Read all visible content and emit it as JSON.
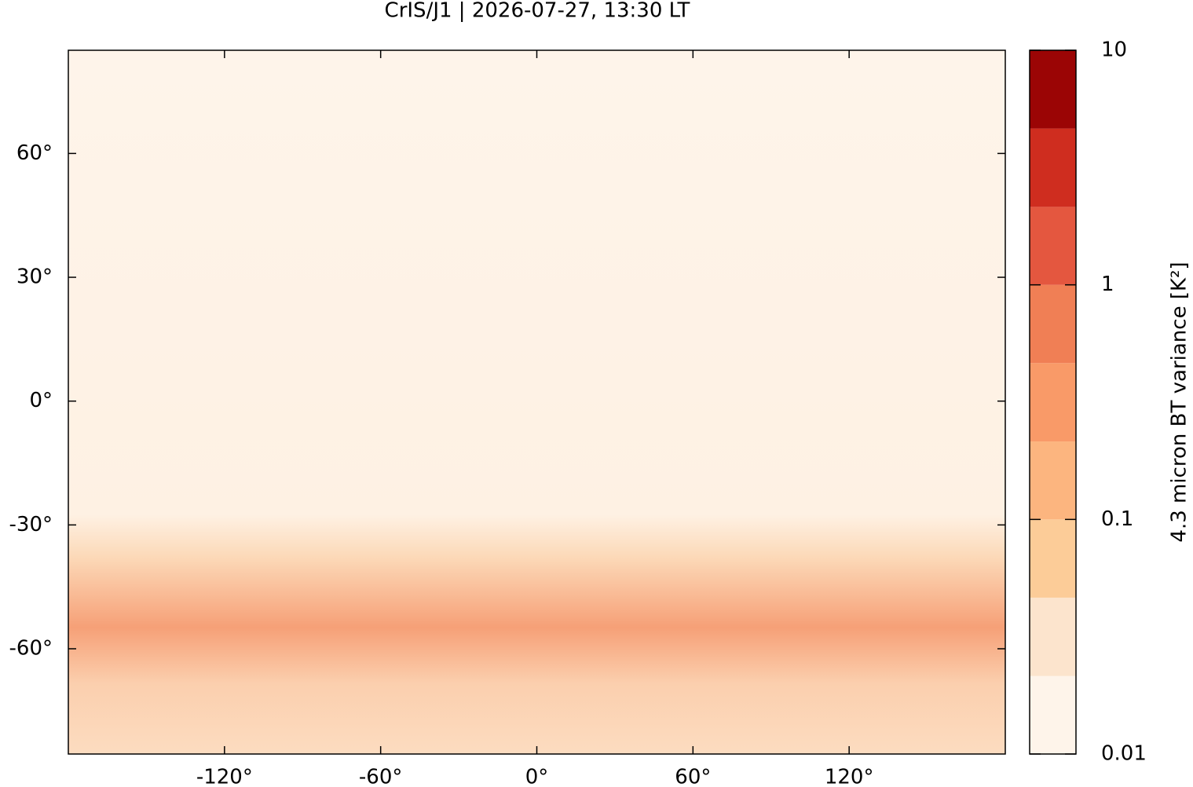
{
  "chart_data": {
    "type": "map",
    "title": "CrIS/J1 | 2026-07-27, 13:30 LT",
    "xlim": [
      -180,
      180
    ],
    "ylim": [
      -85.5,
      85
    ],
    "xticks": [
      {
        "value": -120,
        "label": "-120°"
      },
      {
        "value": -60,
        "label": "-60°"
      },
      {
        "value": 0,
        "label": "0°"
      },
      {
        "value": 60,
        "label": "60°"
      },
      {
        "value": 120,
        "label": "120°"
      }
    ],
    "yticks": [
      {
        "value": -60,
        "label": "-60°"
      },
      {
        "value": -30,
        "label": "-30°"
      },
      {
        "value": 0,
        "label": "0°"
      },
      {
        "value": 30,
        "label": "30°"
      },
      {
        "value": 60,
        "label": "60°"
      }
    ],
    "colorbar": {
      "label": "4.3 micron BT variance [K²]",
      "log": true,
      "levels": [
        0.01,
        0.0215,
        0.0464,
        0.1,
        0.215,
        0.464,
        1,
        2.15,
        4.64,
        10
      ],
      "colors": [
        "#fef4ea",
        "#fce4cd",
        "#fccc98",
        "#fcb57f",
        "#f99a68",
        "#f07f55",
        "#e4573f",
        "#cf2d1f",
        "#9b0505"
      ],
      "ticks": [
        0.01,
        0.1,
        1,
        10
      ]
    }
  }
}
